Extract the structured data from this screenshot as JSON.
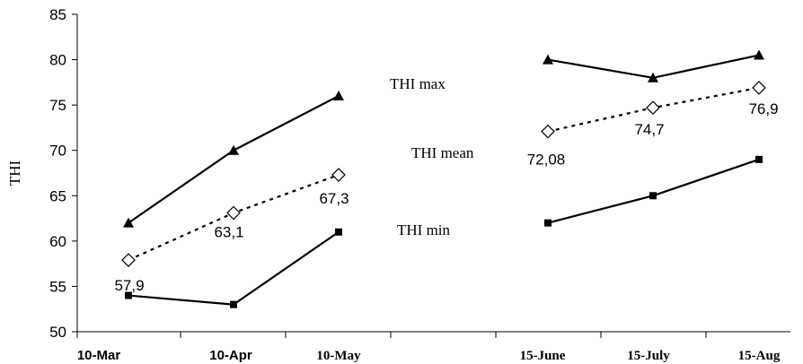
{
  "chart_data": {
    "type": "line",
    "ylabel": "THI",
    "xlabel": "",
    "ylim": [
      50,
      85
    ],
    "yticks": [
      50,
      55,
      60,
      65,
      70,
      75,
      80,
      85
    ],
    "grid": false,
    "categories": [
      "10-Mar",
      "10-Apr",
      "10-May",
      "15-June",
      "15-July",
      "15-Aug"
    ],
    "series": [
      {
        "name": "THI max",
        "marker": "triangle",
        "line": "solid",
        "segments": [
          {
            "x": [
              "10-Mar",
              "10-Apr",
              "10-May"
            ],
            "values": [
              62,
              70,
              76
            ]
          },
          {
            "x": [
              "15-June",
              "15-July",
              "15-Aug"
            ],
            "values": [
              80,
              78,
              80.5
            ]
          }
        ]
      },
      {
        "name": "THI mean",
        "marker": "diamond-open",
        "line": "dotted",
        "segments": [
          {
            "x": [
              "10-Mar",
              "10-Apr",
              "10-May"
            ],
            "values": [
              57.9,
              63.1,
              67.3
            ]
          },
          {
            "x": [
              "15-June",
              "15-July",
              "15-Aug"
            ],
            "values": [
              72.08,
              74.7,
              76.9
            ]
          }
        ],
        "data_labels": [
          "57,9",
          "63,1",
          "67,3",
          "72,08",
          "74,7",
          "76,9"
        ]
      },
      {
        "name": "THI min",
        "marker": "square",
        "line": "solid",
        "segments": [
          {
            "x": [
              "10-Mar",
              "10-Apr",
              "10-May"
            ],
            "values": [
              54,
              53,
              61
            ]
          },
          {
            "x": [
              "15-June",
              "15-July",
              "15-Aug"
            ],
            "values": [
              62,
              65,
              69
            ]
          }
        ]
      }
    ]
  }
}
